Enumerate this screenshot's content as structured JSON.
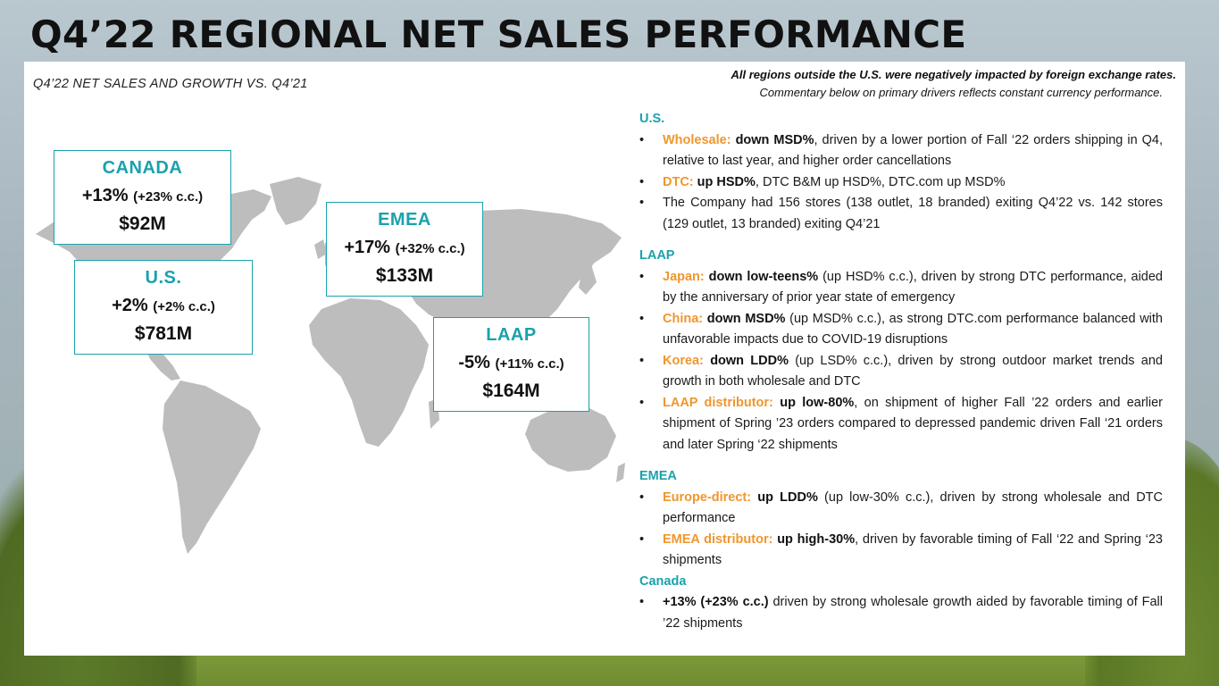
{
  "title": "Q4’22 REGIONAL NET SALES PERFORMANCE",
  "subtitle": "Q4’22 NET SALES AND GROWTH VS. Q4’21",
  "notes": {
    "line1": "All regions outside the U.S. were negatively impacted by foreign exchange rates.",
    "line2": "Commentary below on primary drivers reflects constant currency performance."
  },
  "colors": {
    "accent": "#1aa2ad",
    "highlight": "#f0962e",
    "map": "#bdbdbd"
  },
  "regions": [
    {
      "name": "CANADA",
      "growth": "+13%",
      "cc": "(+23% c.c.)",
      "sales": "$92M"
    },
    {
      "name": "U.S.",
      "growth": "+2%",
      "cc": "(+2% c.c.)",
      "sales": "$781M"
    },
    {
      "name": "EMEA",
      "growth": "+17%",
      "cc": "(+32% c.c.)",
      "sales": "$133M"
    },
    {
      "name": "LAAP",
      "growth": "-5%",
      "cc": "(+11% c.c.)",
      "sales": "$164M"
    }
  ],
  "commentary": {
    "us": {
      "heading": "U.S.",
      "b1": {
        "label": "Wholesale:",
        "strong": "down MSD%",
        "rest": ", driven by a lower portion of Fall ‘22 orders shipping in Q4, relative to last year, and higher order cancellations"
      },
      "b2": {
        "label": "DTC:",
        "strong": "up HSD%",
        "rest": ", DTC B&M up HSD%, DTC.com up MSD%"
      },
      "b3": {
        "text": "The Company had 156 stores (138 outlet, 18 branded) exiting Q4’22 vs. 142 stores (129 outlet, 13 branded) exiting Q4’21"
      }
    },
    "laap": {
      "heading": "LAAP",
      "b1": {
        "label": "Japan:",
        "strong": "down low-teens%",
        "rest": " (up HSD% c.c.), driven by strong DTC performance, aided by the anniversary of prior year state of emergency"
      },
      "b2": {
        "label": "China:",
        "strong": "down MSD%",
        "rest": " (up MSD% c.c.), as strong DTC.com performance balanced with unfavorable impacts due to COVID-19 disruptions"
      },
      "b3": {
        "label": "Korea:",
        "strong": "down LDD%",
        "rest": " (up LSD% c.c.), driven by strong outdoor market trends and growth in both wholesale and DTC"
      },
      "b4": {
        "label": "LAAP distributor:",
        "strong": "up low-80%",
        "rest": ", on shipment of higher Fall ’22 orders and earlier shipment of Spring ’23 orders compared to depressed pandemic driven Fall ‘21 orders and later Spring ‘22 shipments"
      }
    },
    "emea": {
      "heading": "EMEA",
      "b1": {
        "label": "Europe-direct:",
        "strong": "up LDD%",
        "rest": " (up low-30% c.c.), driven by strong wholesale and DTC performance"
      },
      "b2": {
        "label": "EMEA distributor:",
        "strong": "up high-30%",
        "rest": ", driven by favorable timing of Fall ‘22 and Spring ‘23 shipments"
      }
    },
    "canada": {
      "heading": "Canada",
      "b1": {
        "strong": "+13% (+23% c.c.)",
        "rest": " driven by strong wholesale growth aided by favorable timing of Fall ’22 shipments"
      }
    }
  }
}
